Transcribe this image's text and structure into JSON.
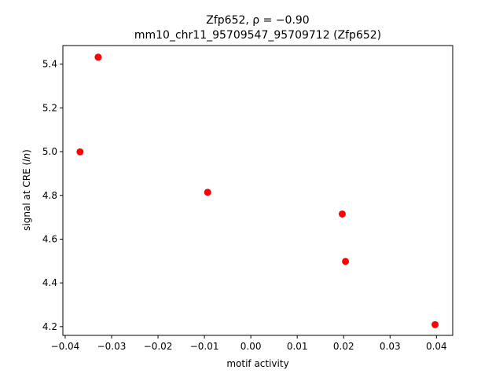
{
  "chart_data": {
    "type": "scatter",
    "title_line1": "Zfp652, ρ = −0.90",
    "title_line2": "mm10_chr11_95709547_95709712 (Zfp652)",
    "xlabel": "motif activity",
    "ylabel": "signal at CRE (ln)",
    "xlim": [
      -0.0405,
      0.0435
    ],
    "ylim": [
      4.16,
      5.485
    ],
    "xticks": [
      -0.04,
      -0.03,
      -0.02,
      -0.01,
      0.0,
      0.01,
      0.02,
      0.03,
      0.04
    ],
    "xtick_labels": [
      "−0.04",
      "−0.03",
      "−0.02",
      "−0.01",
      "0.00",
      "0.01",
      "0.02",
      "0.03",
      "0.04"
    ],
    "yticks": [
      4.2,
      4.4,
      4.6,
      4.8,
      5.0,
      5.2,
      5.4
    ],
    "ytick_labels": [
      "4.2",
      "4.4",
      "4.6",
      "4.8",
      "5.0",
      "5.2",
      "5.4"
    ],
    "grid": false,
    "marker_color": "#ff0000",
    "points": [
      {
        "x": -0.0329,
        "y": 5.432
      },
      {
        "x": -0.0368,
        "y": 4.999
      },
      {
        "x": -0.0093,
        "y": 4.814
      },
      {
        "x": 0.0197,
        "y": 4.715
      },
      {
        "x": 0.0204,
        "y": 4.498
      },
      {
        "x": 0.0397,
        "y": 4.209
      }
    ]
  }
}
